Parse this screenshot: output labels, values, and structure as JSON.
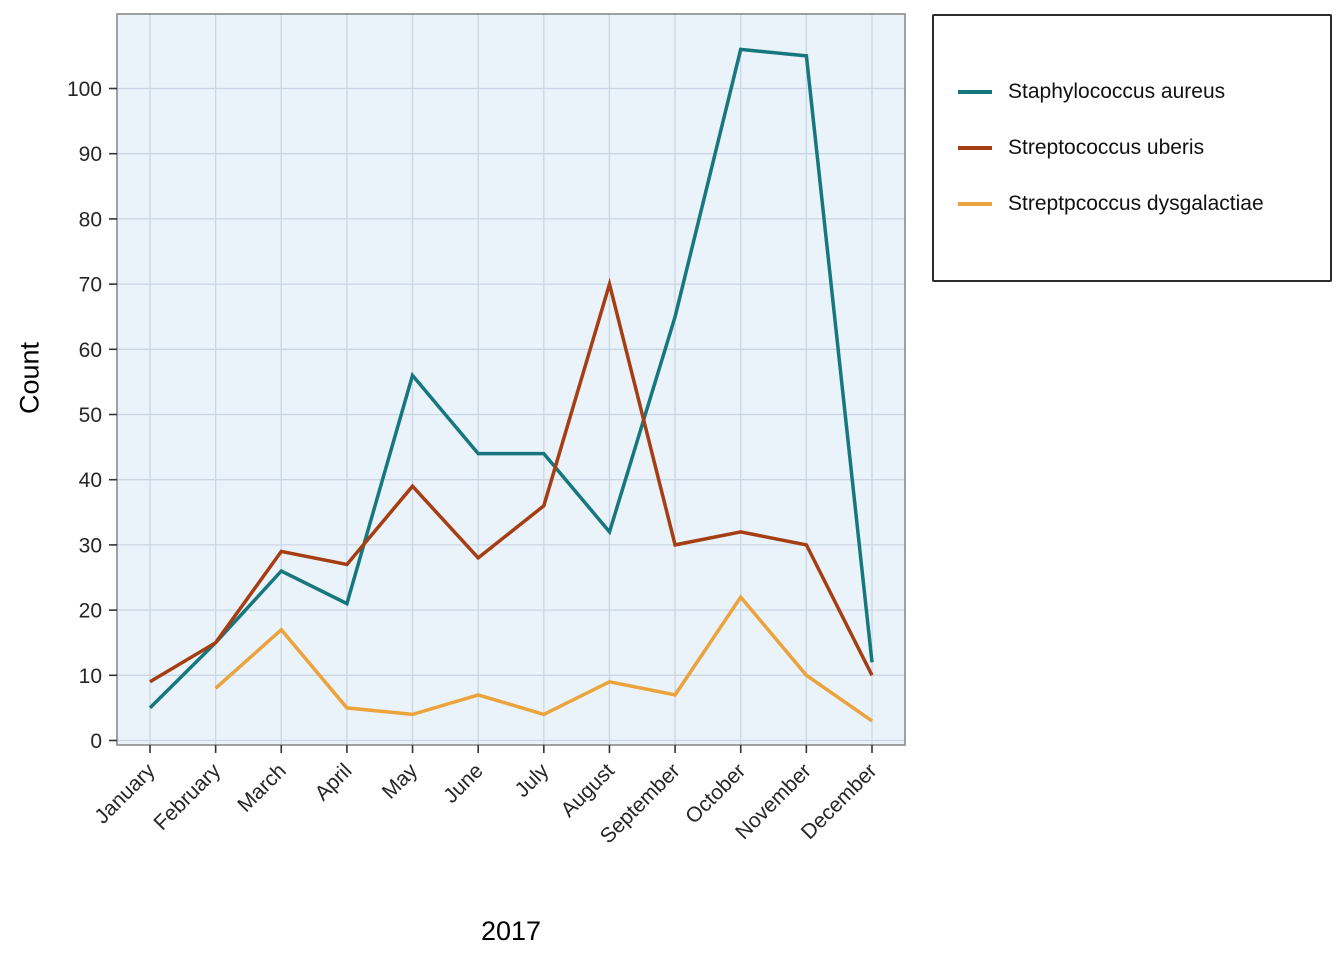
{
  "chart_data": {
    "type": "line",
    "title": "",
    "xlabel": "2017",
    "ylabel": "Count",
    "categories": [
      "January",
      "February",
      "March",
      "April",
      "May",
      "June",
      "July",
      "August",
      "September",
      "October",
      "November",
      "December"
    ],
    "y_ticks": [
      0,
      10,
      20,
      30,
      40,
      50,
      60,
      70,
      80,
      90,
      100
    ],
    "ylim": [
      -1,
      111
    ],
    "grid": true,
    "legend_position": "top-right",
    "series": [
      {
        "name": "Staphylococcus aureus",
        "color": "#17777E",
        "values": [
          5,
          15,
          26,
          21,
          56,
          44,
          44,
          32,
          65,
          106,
          105,
          12
        ]
      },
      {
        "name": "Streptococcus uberis",
        "color": "#A63E13",
        "values": [
          9,
          15,
          29,
          27,
          39,
          28,
          36,
          70,
          30,
          32,
          30,
          10
        ]
      },
      {
        "name": "Streptpcoccus dysgalactiae",
        "color": "#EBA33B",
        "values": [
          null,
          8,
          17,
          5,
          4,
          7,
          4,
          9,
          7,
          22,
          10,
          3
        ]
      }
    ]
  },
  "style": {
    "panel_bg": "#EAF2FA",
    "grid_color": "#C9D7E4",
    "panel_border": "#8A8A8A",
    "tick_color": "#333333",
    "axis_text_color": "#262626",
    "line_width": 3.5
  }
}
